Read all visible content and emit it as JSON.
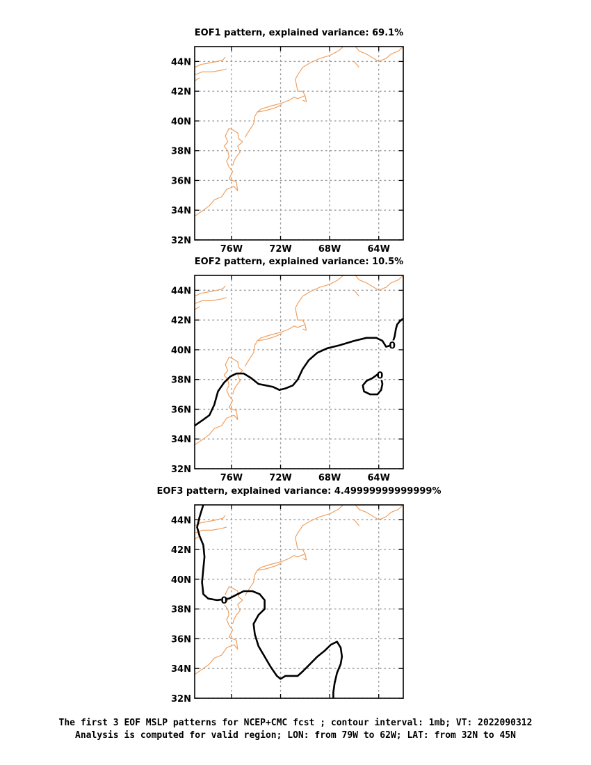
{
  "caption": {
    "line1": "The first 3 EOF MSLP patterns for NCEP+CMC fcst ; contour interval: 1mb; VT: 2022090312",
    "line2": "Analysis is computed for valid region; LON: from 79W to 62W; LAT: from 32N to 45N"
  },
  "colors": {
    "coast": "#f0a060",
    "contour": "#000000",
    "grid": "#999999"
  },
  "chart_data": [
    {
      "type": "contour",
      "title": "EOF1 pattern, explained variance: 69.1%",
      "xlim": [
        -79,
        -62
      ],
      "ylim": [
        32,
        45
      ],
      "x_ticks": [
        -76,
        -72,
        -68,
        -64
      ],
      "x_tick_labels": [
        "76W",
        "72W",
        "68W",
        "64W"
      ],
      "y_ticks": [
        32,
        34,
        36,
        38,
        40,
        42,
        44
      ],
      "y_tick_labels": [
        "32N",
        "34N",
        "36N",
        "38N",
        "40N",
        "42N",
        "44N"
      ],
      "grid": true,
      "contours": []
    },
    {
      "type": "contour",
      "title": "EOF2 pattern, explained variance: 10.5%",
      "xlim": [
        -79,
        -62
      ],
      "ylim": [
        32,
        45
      ],
      "x_ticks": [
        -76,
        -72,
        -68,
        -64
      ],
      "x_tick_labels": [
        "76W",
        "72W",
        "68W",
        "64W"
      ],
      "y_ticks": [
        32,
        34,
        36,
        38,
        40,
        42,
        44
      ],
      "y_tick_labels": [
        "32N",
        "34N",
        "36N",
        "38N",
        "40N",
        "42N",
        "44N"
      ],
      "grid": true,
      "contours": [
        {
          "level": "0",
          "label": "0",
          "label_at": [
            -62.9,
            40.3
          ],
          "points": [
            [
              -79,
              34.9
            ],
            [
              -78.3,
              35.3
            ],
            [
              -77.8,
              35.6
            ],
            [
              -77.4,
              36.3
            ],
            [
              -77.1,
              37.2
            ],
            [
              -76.6,
              37.8
            ],
            [
              -76.1,
              38.2
            ],
            [
              -75.6,
              38.4
            ],
            [
              -75.0,
              38.4
            ],
            [
              -74.4,
              38.1
            ],
            [
              -73.8,
              37.7
            ],
            [
              -73.2,
              37.6
            ],
            [
              -72.6,
              37.5
            ],
            [
              -72.1,
              37.3
            ],
            [
              -71.6,
              37.4
            ],
            [
              -71.0,
              37.6
            ],
            [
              -70.6,
              38.0
            ],
            [
              -70.2,
              38.7
            ],
            [
              -69.7,
              39.3
            ],
            [
              -69.0,
              39.8
            ],
            [
              -68.2,
              40.1
            ],
            [
              -67.2,
              40.3
            ],
            [
              -66.0,
              40.6
            ],
            [
              -65.0,
              40.8
            ],
            [
              -64.2,
              40.8
            ],
            [
              -63.7,
              40.6
            ],
            [
              -63.4,
              40.2
            ],
            [
              -63.0,
              40.3
            ],
            [
              -62.9,
              40.4
            ],
            [
              -62.7,
              40.9
            ],
            [
              -62.6,
              41.4
            ],
            [
              -62.5,
              41.7
            ],
            [
              -62.3,
              41.9
            ],
            [
              -62.0,
              42.1
            ]
          ]
        },
        {
          "level": "0",
          "label": "0",
          "label_at": [
            -63.9,
            38.3
          ],
          "points": [
            [
              -64.0,
              38.4
            ],
            [
              -64.5,
              38.1
            ],
            [
              -65.0,
              37.9
            ],
            [
              -65.3,
              37.6
            ],
            [
              -65.2,
              37.2
            ],
            [
              -64.7,
              37.0
            ],
            [
              -64.1,
              37.0
            ],
            [
              -63.8,
              37.3
            ],
            [
              -63.7,
              37.7
            ],
            [
              -63.8,
              38.1
            ],
            [
              -64.0,
              38.4
            ]
          ]
        }
      ]
    },
    {
      "type": "contour",
      "title": "EOF3 pattern, explained variance: 4.49999999999999%",
      "xlim": [
        -79,
        -62
      ],
      "ylim": [
        32,
        45
      ],
      "x_ticks": [
        -76,
        -72,
        -68,
        -64
      ],
      "x_tick_labels": [
        "76W",
        "72W",
        "68W",
        "64W"
      ],
      "y_ticks": [
        32,
        34,
        36,
        38,
        40,
        42,
        44
      ],
      "y_tick_labels": [
        "32N",
        "34N",
        "36N",
        "38N",
        "40N",
        "42N",
        "44N"
      ],
      "grid": true,
      "contours": [
        {
          "level": "0",
          "label": "0",
          "label_at": [
            -76.6,
            38.6
          ],
          "points": [
            [
              -78.3,
              45.0
            ],
            [
              -78.6,
              44.2
            ],
            [
              -78.8,
              43.5
            ],
            [
              -78.6,
              42.9
            ],
            [
              -78.3,
              42.3
            ],
            [
              -78.2,
              41.5
            ],
            [
              -78.3,
              40.7
            ],
            [
              -78.4,
              39.8
            ],
            [
              -78.3,
              39.0
            ],
            [
              -77.9,
              38.7
            ],
            [
              -77.2,
              38.6
            ],
            [
              -76.2,
              38.7
            ],
            [
              -75.5,
              39.0
            ],
            [
              -75.0,
              39.2
            ],
            [
              -74.3,
              39.2
            ],
            [
              -73.7,
              39.0
            ],
            [
              -73.3,
              38.6
            ],
            [
              -73.3,
              38.0
            ],
            [
              -73.8,
              37.6
            ],
            [
              -74.2,
              37.0
            ],
            [
              -74.1,
              36.3
            ],
            [
              -73.8,
              35.5
            ],
            [
              -73.3,
              34.8
            ],
            [
              -72.8,
              34.1
            ],
            [
              -72.3,
              33.5
            ],
            [
              -72.0,
              33.3
            ],
            [
              -71.6,
              33.5
            ],
            [
              -71.1,
              33.5
            ],
            [
              -70.6,
              33.5
            ],
            [
              -70.2,
              33.8
            ],
            [
              -69.6,
              34.3
            ],
            [
              -69.0,
              34.8
            ],
            [
              -68.4,
              35.2
            ],
            [
              -67.9,
              35.6
            ],
            [
              -67.4,
              35.8
            ],
            [
              -67.1,
              35.4
            ],
            [
              -67.0,
              34.8
            ],
            [
              -67.1,
              34.3
            ],
            [
              -67.4,
              33.7
            ],
            [
              -67.6,
              33.0
            ],
            [
              -67.7,
              32.4
            ],
            [
              -67.7,
              32.0
            ]
          ]
        }
      ]
    }
  ]
}
